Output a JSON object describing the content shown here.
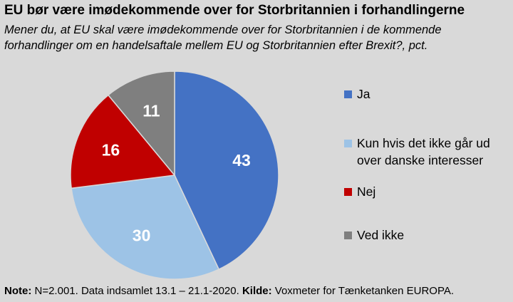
{
  "header": {
    "title": "EU bør være imødekommende over for Storbritannien i forhandlingerne",
    "subtitle": "Mener du, at EU skal være imødekommende over for Storbritannien i de kommende forhandlinger om en handelsaftale mellem EU og Storbritannien efter Brexit?, pct."
  },
  "chart_data": {
    "type": "pie",
    "title": "EU bør være imødekommende over for Storbritannien i forhandlingerne",
    "subtitle": "Mener du, at EU skal være imødekommende over for Storbritannien i de kommende forhandlinger om en handelsaftale mellem EU og Storbritannien efter Brexit?, pct.",
    "unit": "pct.",
    "legend_position": "right",
    "slices": [
      {
        "label": "Ja",
        "value": 43,
        "color": "#4472c4"
      },
      {
        "label": "Kun hvis det ikke går ud over danske interesser",
        "value": 30,
        "color": "#9dc3e6"
      },
      {
        "label": "Nej",
        "value": 16,
        "color": "#c00000"
      },
      {
        "label": "Ved ikke",
        "value": 11,
        "color": "#7f7f7f"
      }
    ]
  },
  "footer": {
    "note_label": "Note:",
    "note_text": " N=2.001. Data indsamlet 13.1 – 21.1-2020. ",
    "source_label": "Kilde:",
    "source_text": " Voxmeter for Tænketanken EUROPA."
  }
}
